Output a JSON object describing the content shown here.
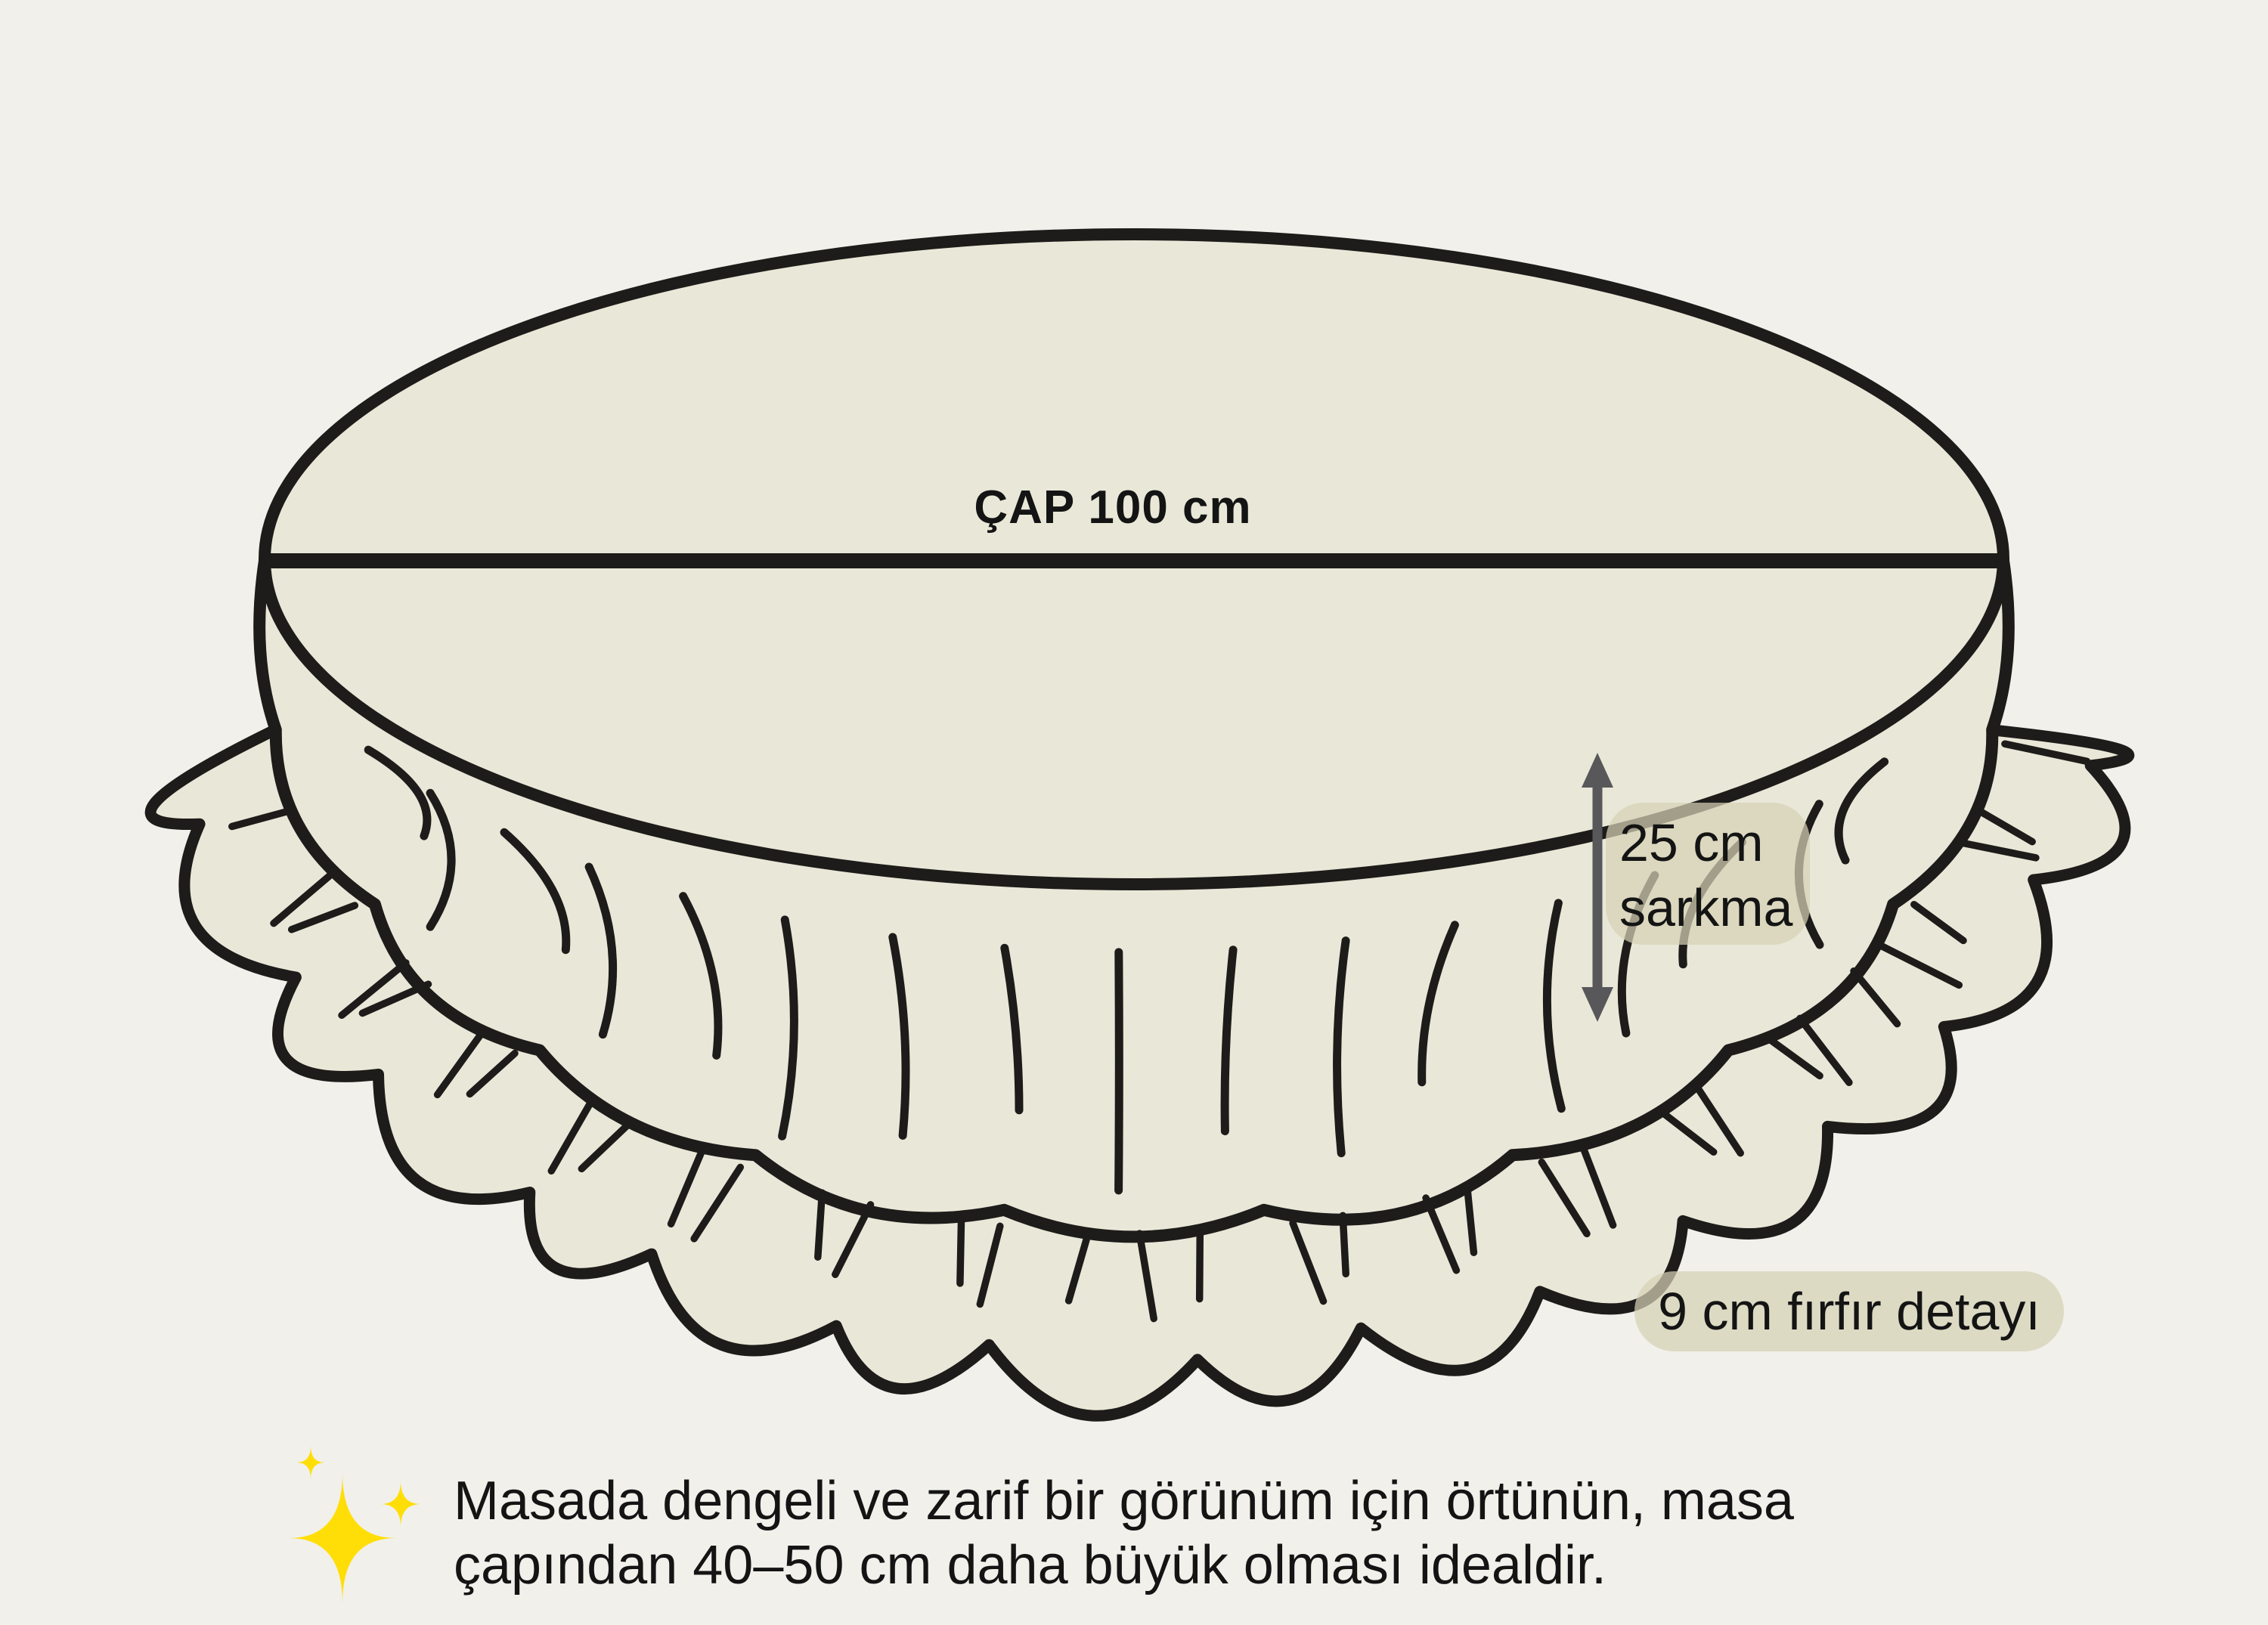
{
  "illustration": {
    "diameter_label": "ÇAP 100 cm",
    "drop_label": {
      "line1": "25 cm",
      "line2": "sarkma"
    },
    "ruffle_label": "9 cm fırfır detayı",
    "measurements": {
      "diameter_cm": 100,
      "drop_cm": 25,
      "ruffle_cm": 9
    }
  },
  "caption": {
    "line1": "Masada dengeli ve zarif bir görünüm için örtünün, masa",
    "line2": "çapından 40–50 cm daha büyük olması idealdir."
  },
  "icons": {
    "sparkle": "sparkle-icon",
    "measure_arrow": "double-arrow-vertical-icon"
  },
  "colors": {
    "background": "#f1f0ea",
    "cloth_fill": "#e9e8d8",
    "outline": "#1d1c1a",
    "arrow": "#58585a",
    "label_bg": "rgba(213,209,182,0.72)",
    "sparkle": "#ffde07",
    "text": "#141414"
  }
}
